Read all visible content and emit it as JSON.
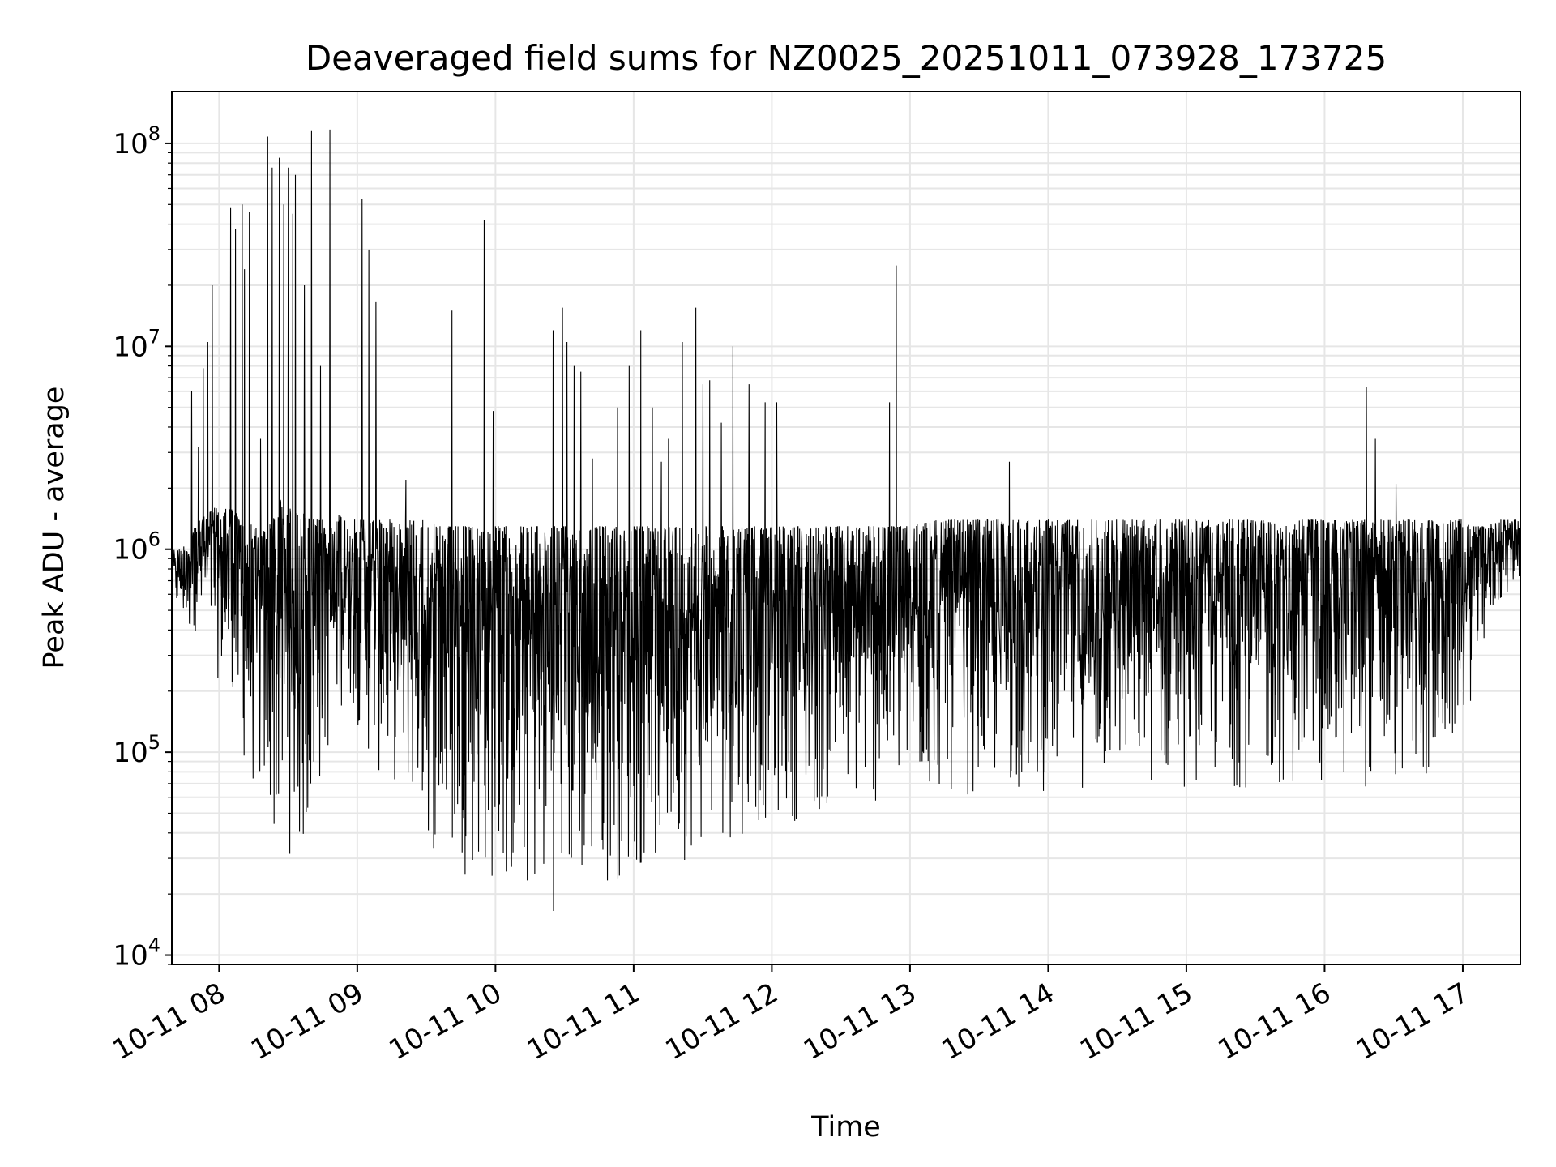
{
  "chart_data": {
    "type": "line",
    "title": "Deaveraged field sums for NZ0025_20251011_073928_173725",
    "xlabel": "Time",
    "ylabel": "Peak ADU - average",
    "x_type": "datetime",
    "xlim": [
      "2025-10-11T07:39:28",
      "2025-10-11T17:25:00"
    ],
    "x_ticks": [
      {
        "value": "2025-10-11T08:00:00",
        "label": "10-11 08"
      },
      {
        "value": "2025-10-11T09:00:00",
        "label": "10-11 09"
      },
      {
        "value": "2025-10-11T10:00:00",
        "label": "10-11 10"
      },
      {
        "value": "2025-10-11T11:00:00",
        "label": "10-11 11"
      },
      {
        "value": "2025-10-11T12:00:00",
        "label": "10-11 12"
      },
      {
        "value": "2025-10-11T13:00:00",
        "label": "10-11 13"
      },
      {
        "value": "2025-10-11T14:00:00",
        "label": "10-11 14"
      },
      {
        "value": "2025-10-11T15:00:00",
        "label": "10-11 15"
      },
      {
        "value": "2025-10-11T16:00:00",
        "label": "10-11 16"
      },
      {
        "value": "2025-10-11T17:00:00",
        "label": "10-11 17"
      }
    ],
    "y_scale": "log",
    "ylim": [
      9000,
      180000000
    ],
    "y_ticks": [
      {
        "value": 10000,
        "base": "10",
        "exp": "4"
      },
      {
        "value": 100000,
        "base": "10",
        "exp": "5"
      },
      {
        "value": 1000000,
        "base": "10",
        "exp": "6"
      },
      {
        "value": 10000000,
        "base": "10",
        "exp": "7"
      },
      {
        "value": 100000000,
        "base": "10",
        "exp": "8"
      }
    ],
    "grid": true,
    "grid_minor": true,
    "line_color": "#000000",
    "grid_color": "#e6e6e6",
    "series": [
      {
        "x": [
          "2025-10-11T07:39:28",
          "2025-10-11T07:43:00",
          "2025-10-11T07:47:00",
          "2025-10-11T07:49:00",
          "2025-10-11T07:52:00",
          "2025-10-11T07:55:00",
          "2025-10-11T07:58:00",
          "2025-10-11T08:01:00",
          "2025-10-11T08:05:00",
          "2025-10-11T08:08:00",
          "2025-10-11T08:11:00",
          "2025-10-11T08:15:00",
          "2025-10-11T08:20:00",
          "2025-10-11T08:23:00",
          "2025-10-11T08:25:00",
          "2025-10-11T08:28:00",
          "2025-10-11T08:31:00",
          "2025-10-11T08:34:00",
          "2025-10-11T08:37:00",
          "2025-10-11T08:40:00",
          "2025-10-11T08:44:00",
          "2025-10-11T08:48:00",
          "2025-10-11T08:52:00",
          "2025-10-11T08:56:00",
          "2025-10-11T08:58:00",
          "2025-10-11T09:02:00",
          "2025-10-11T09:06:00",
          "2025-10-11T09:10:00",
          "2025-10-11T09:15:00",
          "2025-10-11T09:20:00",
          "2025-10-11T09:25:00",
          "2025-10-11T09:30:00",
          "2025-10-11T09:35:00",
          "2025-10-11T09:40:00",
          "2025-10-11T09:45:00",
          "2025-10-11T09:50:00",
          "2025-10-11T09:55:00",
          "2025-10-11T10:00:00",
          "2025-10-11T10:05:00",
          "2025-10-11T10:10:00",
          "2025-10-11T10:15:00",
          "2025-10-11T10:20:00",
          "2025-10-11T10:25:00",
          "2025-10-11T10:30:00",
          "2025-10-11T10:35:00",
          "2025-10-11T10:40:00",
          "2025-10-11T10:45:00",
          "2025-10-11T10:50:00",
          "2025-10-11T10:55:00",
          "2025-10-11T11:00:00",
          "2025-10-11T11:05:00",
          "2025-10-11T11:10:00",
          "2025-10-11T11:15:00",
          "2025-10-11T11:20:00",
          "2025-10-11T11:25:00",
          "2025-10-11T11:30:00",
          "2025-10-11T11:35:00",
          "2025-10-11T11:40:00",
          "2025-10-11T11:45:00",
          "2025-10-11T11:50:00",
          "2025-10-11T11:55:00",
          "2025-10-11T12:00:00",
          "2025-10-11T12:10:00",
          "2025-10-11T12:20:00",
          "2025-10-11T12:30:00",
          "2025-10-11T12:40:00",
          "2025-10-11T12:50:00",
          "2025-10-11T13:00:00",
          "2025-10-11T13:10:00",
          "2025-10-11T13:20:00",
          "2025-10-11T13:30:00",
          "2025-10-11T13:40:00",
          "2025-10-11T13:50:00",
          "2025-10-11T14:00:00",
          "2025-10-11T14:10:00",
          "2025-10-11T14:20:00",
          "2025-10-11T14:30:00",
          "2025-10-11T14:40:00",
          "2025-10-11T14:50:00",
          "2025-10-11T15:00:00",
          "2025-10-11T15:10:00",
          "2025-10-11T15:20:00",
          "2025-10-11T15:30:00",
          "2025-10-11T15:40:00",
          "2025-10-11T15:50:00",
          "2025-10-11T16:00:00",
          "2025-10-11T16:10:00",
          "2025-10-11T16:20:00",
          "2025-10-11T16:30:00",
          "2025-10-11T16:40:00",
          "2025-10-11T16:50:00",
          "2025-10-11T17:00:00",
          "2025-10-11T17:05:00",
          "2025-10-11T17:10:00",
          "2025-10-11T17:15:00",
          "2025-10-11T17:20:00",
          "2025-10-11T17:25:00"
        ],
        "low": [
          500000,
          450000,
          350000,
          400000,
          350000,
          400000,
          250000,
          200000,
          150000,
          100000,
          80000,
          60000,
          45000,
          35000,
          30000,
          30000,
          30000,
          28000,
          26000,
          40000,
          60000,
          100000,
          150000,
          200000,
          150000,
          120000,
          80000,
          70000,
          70000,
          60000,
          50000,
          35000,
          28000,
          25000,
          25000,
          24000,
          22000,
          20000,
          18000,
          18000,
          17000,
          16000,
          16000,
          17000,
          18000,
          20000,
          20000,
          22000,
          23000,
          24000,
          25000,
          25000,
          26000,
          28000,
          30000,
          32000,
          34000,
          35000,
          37000,
          40000,
          42000,
          44000,
          45000,
          46000,
          48000,
          50000,
          52000,
          55000,
          58000,
          60000,
          60000,
          62000,
          62000,
          62000,
          65000,
          65000,
          65000,
          65000,
          65000,
          65000,
          65000,
          65000,
          65000,
          65000,
          65000,
          65000,
          65000,
          65000,
          65000,
          65000,
          65000,
          130000,
          200000,
          350000,
          500000,
          600000,
          700000
        ],
        "high": [
          1000000,
          1000000,
          1100000,
          1300000,
          1400000,
          1500000,
          1600000,
          1600000,
          1600000,
          1500000,
          1400000,
          1300000,
          1300000,
          1400000,
          1700000,
          1800000,
          1600000,
          1500000,
          1500000,
          1400000,
          1400000,
          1400000,
          1500000,
          1400000,
          1400000,
          1400000,
          1400000,
          1400000,
          1400000,
          1400000,
          1400000,
          1400000,
          1300000,
          1300000,
          1300000,
          1300000,
          1300000,
          1300000,
          1300000,
          1300000,
          1300000,
          1300000,
          1300000,
          1300000,
          1300000,
          1300000,
          1300000,
          1300000,
          1300000,
          1300000,
          1300000,
          1300000,
          1300000,
          1300000,
          1300000,
          1300000,
          1300000,
          1300000,
          1300000,
          1300000,
          1300000,
          1300000,
          1300000,
          1300000,
          1300000,
          1300000,
          1300000,
          1300000,
          1400000,
          1400000,
          1400000,
          1400000,
          1400000,
          1400000,
          1400000,
          1400000,
          1400000,
          1400000,
          1400000,
          1400000,
          1400000,
          1400000,
          1400000,
          1400000,
          1400000,
          1400000,
          1400000,
          1400000,
          1400000,
          1400000,
          1400000,
          1400000,
          1300000,
          1300000,
          1400000,
          1400000,
          1400000
        ],
        "spikes": [
          {
            "x": "2025-10-11T07:48:00",
            "y": 6000000
          },
          {
            "x": "2025-10-11T07:51:00",
            "y": 3200000
          },
          {
            "x": "2025-10-11T07:53:00",
            "y": 7800000
          },
          {
            "x": "2025-10-11T07:55:00",
            "y": 10500000
          },
          {
            "x": "2025-10-11T07:57:00",
            "y": 20000000
          },
          {
            "x": "2025-10-11T08:05:00",
            "y": 48000000
          },
          {
            "x": "2025-10-11T08:07:00",
            "y": 38000000
          },
          {
            "x": "2025-10-11T08:10:00",
            "y": 50000000
          },
          {
            "x": "2025-10-11T08:11:00",
            "y": 24000000
          },
          {
            "x": "2025-10-11T08:13:00",
            "y": 46000000
          },
          {
            "x": "2025-10-11T08:18:00",
            "y": 3500000
          },
          {
            "x": "2025-10-11T08:21:00",
            "y": 108000000
          },
          {
            "x": "2025-10-11T08:23:00",
            "y": 76000000
          },
          {
            "x": "2025-10-11T08:26:00",
            "y": 85000000
          },
          {
            "x": "2025-10-11T08:28:00",
            "y": 50000000
          },
          {
            "x": "2025-10-11T08:30:00",
            "y": 76000000
          },
          {
            "x": "2025-10-11T08:32:00",
            "y": 45000000
          },
          {
            "x": "2025-10-11T08:33:00",
            "y": 70000000
          },
          {
            "x": "2025-10-11T08:37:00",
            "y": 20000000
          },
          {
            "x": "2025-10-11T08:40:00",
            "y": 115000000
          },
          {
            "x": "2025-10-11T08:44:00",
            "y": 8000000
          },
          {
            "x": "2025-10-11T08:48:00",
            "y": 117000000
          },
          {
            "x": "2025-10-11T09:02:00",
            "y": 53000000
          },
          {
            "x": "2025-10-11T09:05:00",
            "y": 30000000
          },
          {
            "x": "2025-10-11T09:08:00",
            "y": 16500000
          },
          {
            "x": "2025-10-11T09:21:00",
            "y": 2200000
          },
          {
            "x": "2025-10-11T09:41:00",
            "y": 15000000
          },
          {
            "x": "2025-10-11T09:55:00",
            "y": 42000000
          },
          {
            "x": "2025-10-11T09:59:00",
            "y": 4800000
          },
          {
            "x": "2025-10-11T10:25:00",
            "y": 12000000
          },
          {
            "x": "2025-10-11T10:29:00",
            "y": 15500000
          },
          {
            "x": "2025-10-11T10:31:00",
            "y": 10500000
          },
          {
            "x": "2025-10-11T10:34:00",
            "y": 8000000
          },
          {
            "x": "2025-10-11T10:37:00",
            "y": 7500000
          },
          {
            "x": "2025-10-11T10:42:00",
            "y": 2800000
          },
          {
            "x": "2025-10-11T10:53:00",
            "y": 5000000
          },
          {
            "x": "2025-10-11T10:58:00",
            "y": 8000000
          },
          {
            "x": "2025-10-11T11:03:00",
            "y": 12000000
          },
          {
            "x": "2025-10-11T11:08:00",
            "y": 5000000
          },
          {
            "x": "2025-10-11T11:12:00",
            "y": 2700000
          },
          {
            "x": "2025-10-11T11:15:00",
            "y": 3500000
          },
          {
            "x": "2025-10-11T11:21:00",
            "y": 10500000
          },
          {
            "x": "2025-10-11T11:27:00",
            "y": 15500000
          },
          {
            "x": "2025-10-11T11:30:00",
            "y": 6500000
          },
          {
            "x": "2025-10-11T11:33:00",
            "y": 6800000
          },
          {
            "x": "2025-10-11T11:38:00",
            "y": 4200000
          },
          {
            "x": "2025-10-11T11:43:00",
            "y": 10000000
          },
          {
            "x": "2025-10-11T11:50:00",
            "y": 6500000
          },
          {
            "x": "2025-10-11T11:57:00",
            "y": 5300000
          },
          {
            "x": "2025-10-11T12:02:00",
            "y": 5300000
          },
          {
            "x": "2025-10-11T12:51:00",
            "y": 5300000
          },
          {
            "x": "2025-10-11T12:54:00",
            "y": 25000000
          },
          {
            "x": "2025-10-11T13:43:00",
            "y": 2700000
          },
          {
            "x": "2025-10-11T16:18:00",
            "y": 6300000
          },
          {
            "x": "2025-10-11T16:22:00",
            "y": 3500000
          },
          {
            "x": "2025-10-11T16:31:00",
            "y": 2100000
          }
        ]
      }
    ]
  }
}
